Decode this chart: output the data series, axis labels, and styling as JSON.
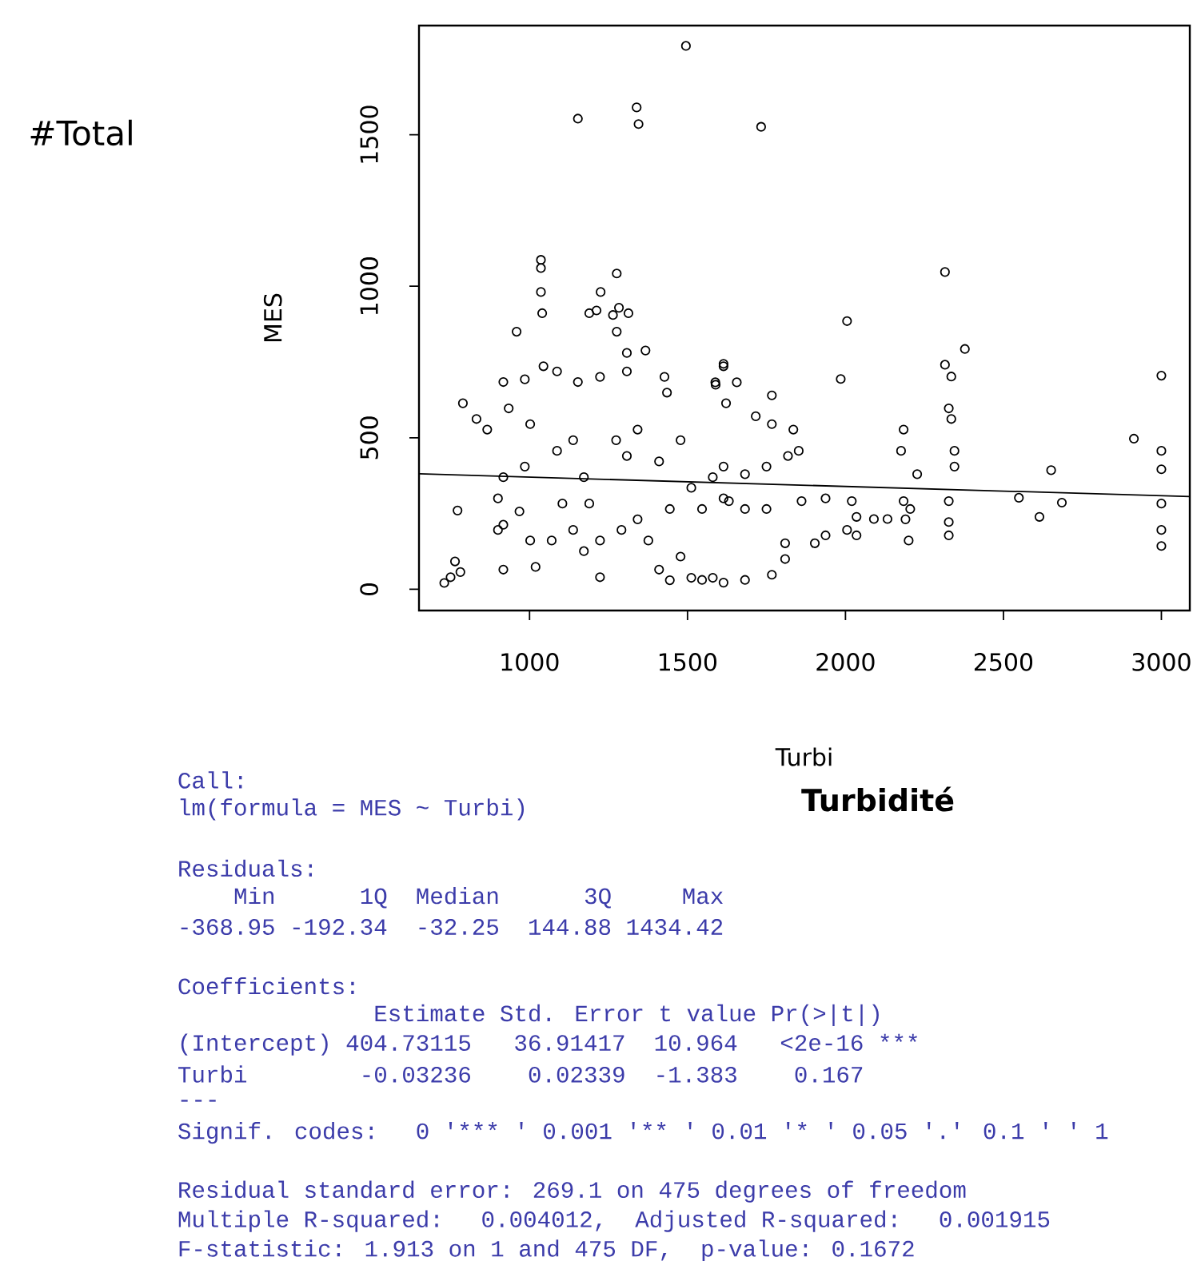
{
  "chart_data": {
    "type": "scatter",
    "xlabel": "Turbi",
    "ylabel": "MES",
    "xlim": [
      650,
      3090
    ],
    "ylim": [
      -70,
      1860
    ],
    "xticks": [
      1000,
      1500,
      2000,
      2500,
      3000
    ],
    "yticks": [
      0,
      500,
      1000,
      1500
    ],
    "annotations": [
      "#Total",
      "Turbidité",
      "Call:",
      "lm(formula = MES ~ Turbi)",
      "Residuals:",
      "    Min      1Q  Median      3Q     Max",
      "-368.95 -192.34  -32.25  144.88 1434.42",
      "Coefficients:",
      "              Estimate Std. Error t value Pr(>|t|)",
      "(Intercept) 404.73115   36.91417  10.964   <2e-16 ***",
      "Turbi        -0.03236    0.02339  -1.383    0.167",
      "---",
      "Signif. codes:  0 '***",
      "' 0.001 '**",
      "' 0.01 '*",
      "' 0.05 '.' 0.1 ' ' 1",
      "Residual standard error: 269.1 on 475 degrees of freedom",
      "Multiple R-squared:  0.004012,  Adjusted R-squared:  0.001915",
      "F-statistic: 1.913 on 1 and 475 DF,  p-value: 0.1672"
    ],
    "series": [
      {
        "marker": "circle",
        "color": "#000000",
        "x": [
          1495,
          1153,
          1339,
          1345,
          1733,
          1036,
          1036,
          1036,
          1040,
          959,
          1189,
          1212,
          1225,
          1276,
          1264,
          1276,
          1283,
          1313,
          2005,
          1985,
          2315,
          2378,
          2315,
          2335,
          3000,
          2913,
          2651,
          2549,
          2614,
          2685,
          3000,
          3000,
          3000,
          3000,
          3000,
          2327,
          2335,
          2345,
          2345,
          2327,
          2327,
          2327,
          2184,
          2176,
          2227,
          2184,
          2190,
          2200,
          2205,
          2020,
          2035,
          2035,
          2090,
          2133,
          2005,
          1937,
          1903,
          1937,
          1861,
          1835,
          1818,
          1852,
          1767,
          1716,
          1767,
          1622,
          1656,
          1588,
          1614,
          1750,
          1750,
          1809,
          1809,
          1767,
          1682,
          1614,
          1546,
          1410,
          1444,
          1512,
          1580,
          1478,
          730,
          764,
          781,
          750,
          772,
          789,
          832,
          866,
          917,
          985,
          934,
          1002,
          1044,
          1087,
          1153,
          1223,
          1308,
          1308,
          1367,
          1427,
          1435,
          1614,
          1589,
          917,
          985,
          1087,
          1138,
          1172,
          1189,
          1274,
          1308,
          1342,
          1410,
          1478,
          1512,
          1580,
          1614,
          900,
          917,
          968,
          900,
          1002,
          1070,
          1138,
          1172,
          1223,
          1291,
          1342,
          1376,
          917,
          1019,
          1223,
          1104,
          1444,
          1546,
          1631,
          1682,
          1614,
          1682
        ],
        "values": [
          1793,
          1553,
          1590,
          1535,
          1526,
          1087,
          1060,
          981,
          911,
          850,
          911,
          920,
          981,
          1042,
          905,
          850,
          929,
          911,
          885,
          694,
          1047,
          793,
          741,
          702,
          705,
          497,
          393,
          302,
          239,
          286,
          457,
          396,
          283,
          196,
          143,
          597,
          562,
          457,
          405,
          291,
          222,
          178,
          527,
          457,
          380,
          291,
          231,
          161,
          265,
          291,
          239,
          178,
          232,
          232,
          196,
          178,
          152,
          300,
          291,
          527,
          440,
          457,
          640,
          571,
          545,
          614,
          683,
          683,
          744,
          405,
          265,
          152,
          100,
          48,
          31,
          22,
          31,
          65,
          30,
          38,
          38,
          108,
          21,
          92,
          57,
          40,
          260,
          614,
          562,
          527,
          684,
          693,
          597,
          545,
          736,
          719,
          684,
          701,
          719,
          780,
          788,
          701,
          649,
          736,
          675,
          370,
          405,
          457,
          492,
          370,
          283,
          492,
          440,
          527,
          422,
          492,
          335,
          370,
          300,
          300,
          213,
          257,
          196,
          161,
          161,
          196,
          126,
          161,
          196,
          231,
          161,
          65,
          74,
          40,
          283,
          265,
          265,
          291,
          265,
          405,
          380
        ]
      },
      {
        "type": "line",
        "color": "#000000",
        "x": [
          650,
          3090
        ],
        "values": [
          381,
          306
        ]
      }
    ]
  }
}
